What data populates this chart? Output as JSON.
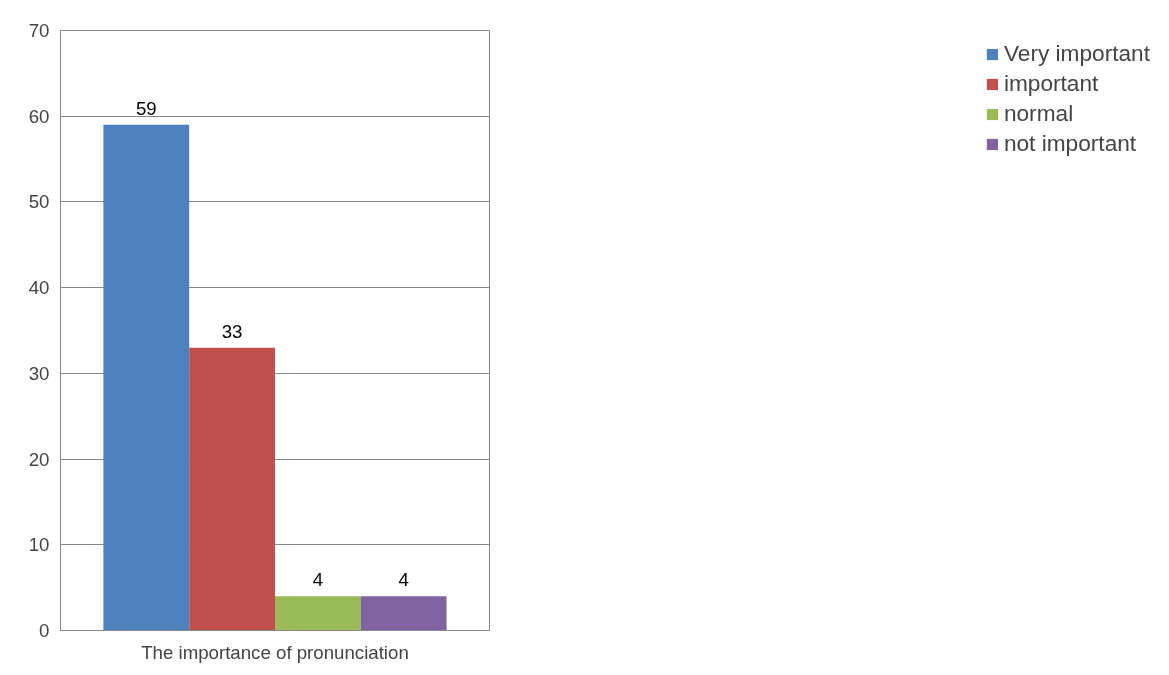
{
  "chart_data": {
    "type": "bar",
    "categories": [
      "The importance of pronunciation"
    ],
    "series": [
      {
        "name": "Very important",
        "color": "#4f81bd",
        "values": [
          59
        ]
      },
      {
        "name": "important",
        "color": "#c0504d",
        "values": [
          33
        ]
      },
      {
        "name": "normal",
        "color": "#9bbb59",
        "values": [
          4
        ]
      },
      {
        "name": "not important",
        "color": "#8064a2",
        "values": [
          4
        ]
      }
    ],
    "ylim": [
      0,
      70
    ],
    "yticks": [
      0,
      10,
      20,
      30,
      40,
      50,
      60,
      70
    ],
    "grid": "y",
    "legend": "right",
    "data_labels": true
  }
}
